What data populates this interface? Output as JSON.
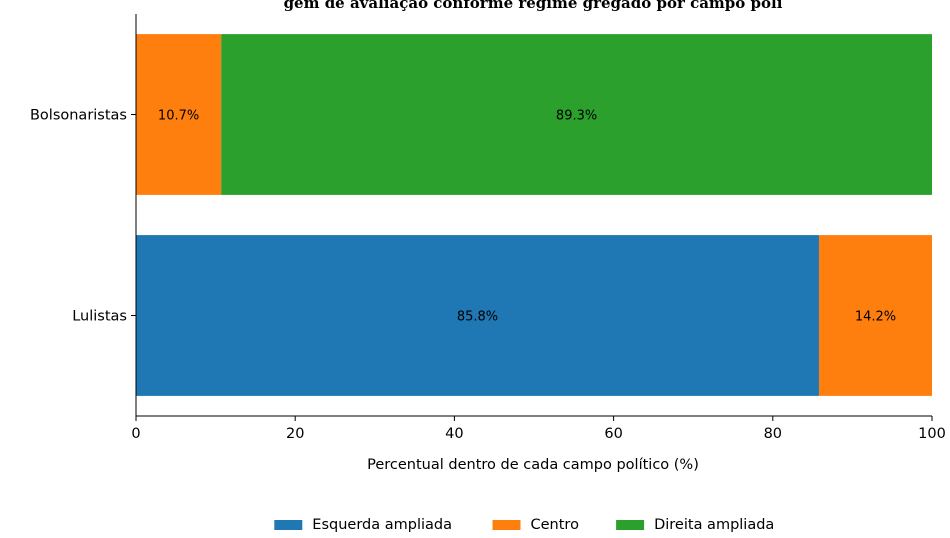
{
  "chart_data": {
    "type": "bar",
    "orientation": "horizontal",
    "stacked": true,
    "title": "gem de avaliação conforme regime gregado por campo polí",
    "xlabel": "Percentual dentro de cada campo político (%)",
    "ylabel": "",
    "xlim": [
      0,
      100
    ],
    "xticks": [
      0,
      20,
      40,
      60,
      80,
      100
    ],
    "categories": [
      "Bolsonaristas",
      "Lulistas"
    ],
    "series": [
      {
        "name": "Esquerda ampliada",
        "color": "#1f77b4",
        "values": [
          0,
          85.8
        ],
        "labels": [
          "",
          "85.8%"
        ]
      },
      {
        "name": "Centro",
        "color": "#ff7f0e",
        "values": [
          10.7,
          14.2
        ],
        "labels": [
          "10.7%",
          "14.2%"
        ]
      },
      {
        "name": "Direita ampliada",
        "color": "#2ca02c",
        "values": [
          89.3,
          0
        ],
        "labels": [
          "89.3%",
          ""
        ]
      }
    ],
    "grid": false,
    "legend": "bottom-center"
  }
}
